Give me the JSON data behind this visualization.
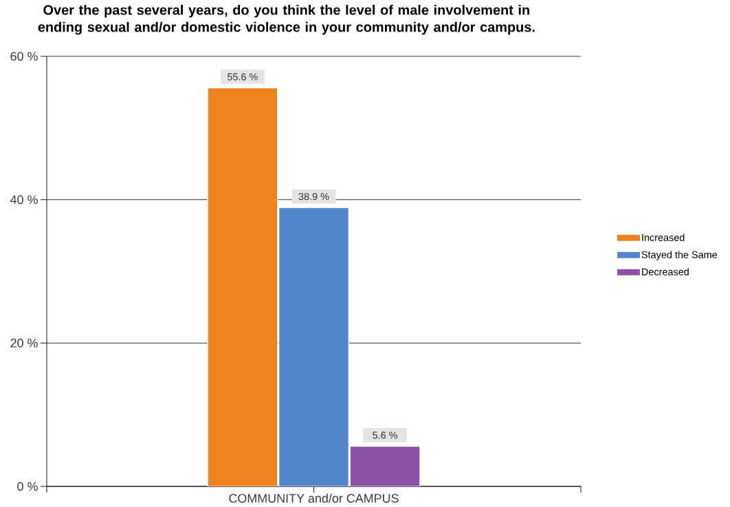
{
  "chart_data": {
    "type": "bar",
    "title": "Over the past several years, do you think the level of male involvement in ending sexual and/or domestic violence in your community and/or campus.",
    "categories": [
      "COMMUNITY and/or CAMPUS"
    ],
    "series": [
      {
        "name": "Increased",
        "color": "#ec8220",
        "values": [
          55.6
        ],
        "value_labels": [
          "55.6 %"
        ]
      },
      {
        "name": "Stayed the Same",
        "color": "#5285c9",
        "values": [
          38.9
        ],
        "value_labels": [
          "38.9 %"
        ]
      },
      {
        "name": "Decreased",
        "color": "#8d50a5",
        "values": [
          5.6
        ],
        "value_labels": [
          "5.6 %"
        ]
      }
    ],
    "ylim": [
      0,
      60
    ],
    "yticks": [
      {
        "value": 0,
        "label": "0 %"
      },
      {
        "value": 20,
        "label": "20 %"
      },
      {
        "value": 40,
        "label": "40 %"
      },
      {
        "value": 60,
        "label": "60 %"
      }
    ],
    "grid": "y",
    "legend": "right"
  }
}
